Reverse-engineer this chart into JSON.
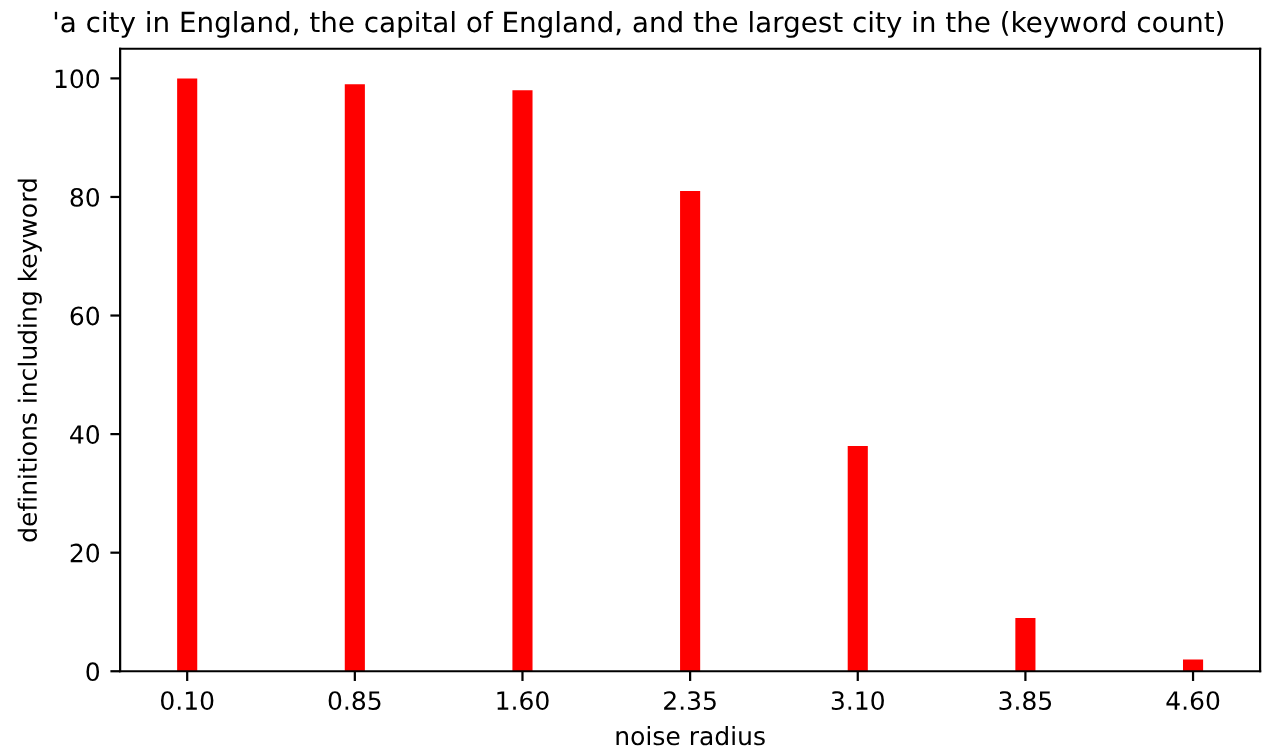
{
  "chart_data": {
    "type": "bar",
    "title": "'a city in England, the capital of England, and the largest city in the (keyword count)",
    "xlabel": "noise radius",
    "ylabel": "definitions including keyword",
    "categories": [
      "0.10",
      "0.85",
      "1.60",
      "2.35",
      "3.10",
      "3.85",
      "4.60"
    ],
    "values": [
      100,
      99,
      98,
      81,
      38,
      9,
      2
    ],
    "color": "#ff0000",
    "ylim": [
      0,
      105
    ],
    "yticks": [
      0,
      20,
      40,
      60,
      80,
      100
    ],
    "grid": false,
    "legend": false
  }
}
